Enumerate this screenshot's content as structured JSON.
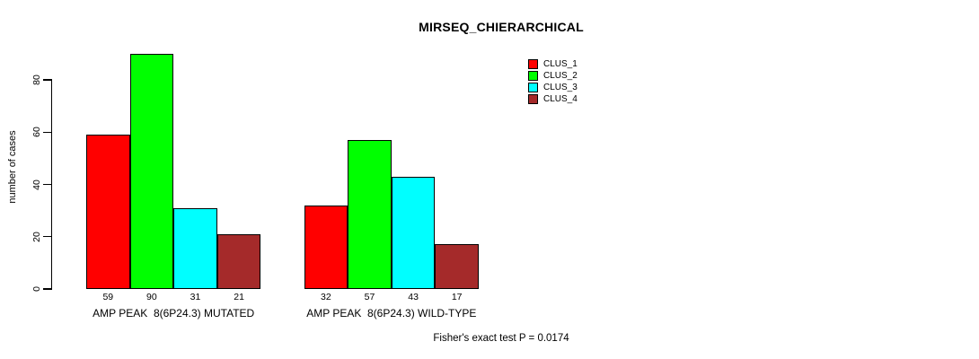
{
  "chart_data": {
    "type": "bar",
    "title": "MIRSEQ_CHIERARCHICAL",
    "ylabel": "number of cases",
    "xlabel": "",
    "categories": [
      "AMP PEAK  8(6P24.3) MUTATED",
      "AMP PEAK  8(6P24.3) WILD-TYPE"
    ],
    "series": [
      {
        "name": "CLUS_1",
        "color": "#ff0000",
        "values": [
          59,
          32
        ]
      },
      {
        "name": "CLUS_2",
        "color": "#00ff00",
        "values": [
          90,
          57
        ]
      },
      {
        "name": "CLUS_3",
        "color": "#00ffff",
        "values": [
          31,
          43
        ]
      },
      {
        "name": "CLUS_4",
        "color": "#a52a2a",
        "values": [
          21,
          17
        ]
      }
    ],
    "yticks": [
      0,
      20,
      40,
      60,
      80
    ],
    "ylim": [
      0,
      93
    ],
    "grid": false,
    "show_values": true,
    "legend_position": "top-right",
    "annotation": "Fisher's exact test P = 0.0174",
    "axis_color": "#000000",
    "background_color": "#ffffff"
  }
}
